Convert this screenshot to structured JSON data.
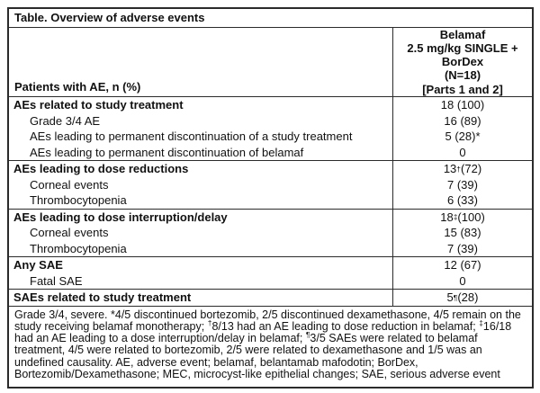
{
  "table": {
    "title": "Table. Overview of adverse events",
    "header": {
      "left": "Patients with AE, n (%)",
      "right_lines": [
        "Belamaf",
        "2.5 mg/kg SINGLE +",
        "BorDex",
        "(N=18)",
        "[Parts 1 and 2]"
      ]
    },
    "sections": [
      {
        "rows": [
          {
            "label": "AEs related to study treatment",
            "bold": true,
            "indent": false,
            "value": {
              "main": "18 (100)",
              "sup": "",
              "rest": ""
            }
          },
          {
            "label": "Grade 3/4 AE",
            "bold": false,
            "indent": true,
            "value": {
              "main": "16 (89)",
              "sup": "",
              "rest": ""
            }
          },
          {
            "label": "AEs leading to permanent discontinuation of a study treatment",
            "bold": false,
            "indent": true,
            "value": {
              "main": "5 (28)*",
              "sup": "",
              "rest": ""
            }
          },
          {
            "label": "AEs leading to permanent discontinuation of belamaf",
            "bold": false,
            "indent": true,
            "value": {
              "main": "0",
              "sup": "",
              "rest": ""
            }
          }
        ]
      },
      {
        "rows": [
          {
            "label": "AEs leading to dose reductions",
            "bold": true,
            "indent": false,
            "value": {
              "main": "13",
              "sup": "†",
              "rest": " (72)"
            }
          },
          {
            "label": "Corneal events",
            "bold": false,
            "indent": true,
            "value": {
              "main": "7 (39)",
              "sup": "",
              "rest": ""
            }
          },
          {
            "label": "Thrombocytopenia",
            "bold": false,
            "indent": true,
            "value": {
              "main": "6 (33)",
              "sup": "",
              "rest": ""
            }
          }
        ]
      },
      {
        "rows": [
          {
            "label": "AEs leading to dose interruption/delay",
            "bold": true,
            "indent": false,
            "value": {
              "main": "18",
              "sup": "‡",
              "rest": " (100)"
            }
          },
          {
            "label": "Corneal events",
            "bold": false,
            "indent": true,
            "value": {
              "main": "15 (83)",
              "sup": "",
              "rest": ""
            }
          },
          {
            "label": "Thrombocytopenia",
            "bold": false,
            "indent": true,
            "value": {
              "main": "7 (39)",
              "sup": "",
              "rest": ""
            }
          }
        ]
      },
      {
        "rows": [
          {
            "label": "Any SAE",
            "bold": true,
            "indent": false,
            "value": {
              "main": "12 (67)",
              "sup": "",
              "rest": ""
            }
          },
          {
            "label": "Fatal SAE",
            "bold": false,
            "indent": true,
            "value": {
              "main": "0",
              "sup": "",
              "rest": ""
            }
          }
        ]
      },
      {
        "rows": [
          {
            "label": "SAEs related to study treatment",
            "bold": true,
            "indent": false,
            "value": {
              "main": "5",
              "sup": "¶",
              "rest": "(28)"
            }
          }
        ]
      }
    ],
    "footnote_segments": [
      {
        "text": "Grade 3/4, severe. *4/5 discontinued bortezomib, 2/5 discontinued dexamethasone, 4/5 remain on the study receiving belamaf monotherapy; "
      },
      {
        "sup": "†"
      },
      {
        "text": "8/13 had an AE leading to dose reduction in belamaf; "
      },
      {
        "sup": "‡"
      },
      {
        "text": "16/18 had an AE leading to a dose interruption/delay in belamaf; "
      },
      {
        "sup": "¶"
      },
      {
        "text": "3/5 SAEs were related to belamaf treatment, 4/5 were related to bortezomib, 2/5 were related to dexamethasone and 1/5 was an undefined causality. AE, adverse event; belamaf, belantamab mafodotin; BorDex, Bortezomib/Dexamethasone; MEC, microcyst-like epithelial changes; SAE, serious adverse event"
      }
    ],
    "colors": {
      "border": "#2b2b2b",
      "text": "#111111",
      "background": "#ffffff"
    }
  }
}
